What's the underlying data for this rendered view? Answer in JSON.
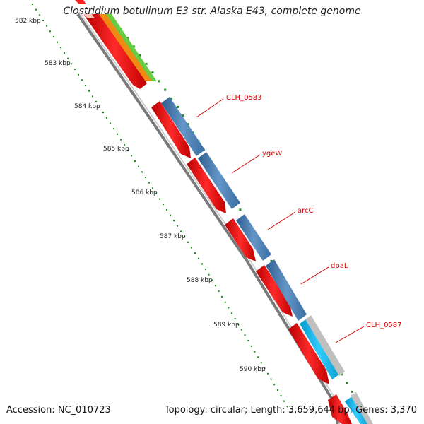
{
  "title": "Clostridium botulinum E3 str. Alaska E43, complete genome",
  "accession_text": "Accession: NC_010723",
  "summary_text": "Topology: circular; Length: 3,659,644 bp; Genes: 3,370",
  "colors": {
    "backbone": "#888888",
    "forward_cds": "#ff0000",
    "reverse_cds": "#4a7fb5",
    "rna": "#22aacc",
    "label": "#d40000",
    "tick_dots": "#118811"
  },
  "scale_labels": [
    "582 kbp",
    "583 kbp",
    "584 kbp",
    "585 kbp",
    "586 kbp",
    "587 kbp",
    "588 kbp",
    "589 kbp",
    "590 kbp"
  ],
  "gene_labels": [
    "CLH_0583",
    "ygeW",
    "arcC",
    "dpaL",
    "CLH_0587"
  ]
}
